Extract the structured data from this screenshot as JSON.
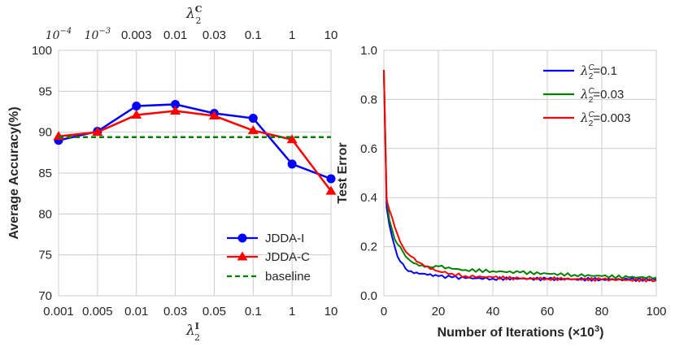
{
  "chart_data": [
    {
      "type": "line",
      "xlabel_main": "λ",
      "xlabel_sub": "2",
      "xlabel_sup": "I",
      "top_xlabel_main": "λ",
      "top_xlabel_sub": "2",
      "top_xlabel_sup": "C",
      "ylabel": "Average Accuracy(%)",
      "categories": [
        "0.001",
        "0.005",
        "0.01",
        "0.03",
        "0.05",
        "0.1",
        "1",
        "10"
      ],
      "top_categories": [
        {
          "base": "10",
          "exp": "−4"
        },
        {
          "base": "10",
          "exp": "−3"
        },
        {
          "base": "0.003",
          "exp": ""
        },
        {
          "base": "0.01",
          "exp": ""
        },
        {
          "base": "0.03",
          "exp": ""
        },
        {
          "base": "0.1",
          "exp": ""
        },
        {
          "base": "1",
          "exp": ""
        },
        {
          "base": "10",
          "exp": ""
        }
      ],
      "ylim": [
        70,
        100
      ],
      "yticks": [
        "70",
        "75",
        "80",
        "85",
        "90",
        "95",
        "100"
      ],
      "series": [
        {
          "name": "JDDA-I",
          "color": "#0000ff",
          "marker": "circle",
          "values": [
            89.0,
            90.1,
            93.2,
            93.4,
            92.3,
            91.7,
            86.1,
            84.3
          ]
        },
        {
          "name": "JDDA-C",
          "color": "#ff0000",
          "marker": "triangle",
          "values": [
            89.5,
            90.0,
            92.1,
            92.6,
            92.0,
            90.2,
            89.1,
            82.8
          ]
        },
        {
          "name": "baseline",
          "color": "#008000",
          "dashed": true,
          "values": [
            89.4,
            89.4,
            89.4,
            89.4,
            89.4,
            89.4,
            89.4,
            89.4
          ]
        }
      ],
      "legend_position": "bottom-right"
    },
    {
      "type": "line",
      "xlabel": "Number of Iterations (×10",
      "xlabel_exp": "3",
      "xlabel_close": ")",
      "ylabel": "Test Error",
      "xlim": [
        0,
        100
      ],
      "ylim": [
        0,
        1.0
      ],
      "xticks": [
        "0",
        "20",
        "40",
        "60",
        "80",
        "100"
      ],
      "yticks": [
        "0.0",
        "0.2",
        "0.4",
        "0.6",
        "0.8",
        "1.0"
      ],
      "series": [
        {
          "name_sym": "λ",
          "name_sub": "2",
          "name_sup": "C",
          "name_val": "=0.1",
          "color": "#0000ff",
          "x": [
            0,
            1,
            2,
            3,
            4,
            5,
            6,
            7,
            8,
            9,
            10,
            12,
            14,
            16,
            18,
            20,
            25,
            30,
            40,
            50,
            60,
            70,
            80,
            90,
            100
          ],
          "y": [
            0.92,
            0.36,
            0.29,
            0.24,
            0.2,
            0.16,
            0.14,
            0.13,
            0.11,
            0.1,
            0.1,
            0.095,
            0.09,
            0.085,
            0.08,
            0.08,
            0.075,
            0.072,
            0.07,
            0.07,
            0.068,
            0.068,
            0.067,
            0.066,
            0.066
          ]
        },
        {
          "name_sym": "λ",
          "name_sub": "2",
          "name_sup": "C",
          "name_val": "=0.03",
          "color": "#008000",
          "x": [
            0,
            1,
            2,
            3,
            4,
            5,
            6,
            7,
            8,
            9,
            10,
            12,
            14,
            16,
            18,
            20,
            25,
            30,
            40,
            50,
            60,
            70,
            80,
            90,
            100
          ],
          "y": [
            0.92,
            0.4,
            0.31,
            0.27,
            0.23,
            0.21,
            0.2,
            0.18,
            0.16,
            0.15,
            0.14,
            0.13,
            0.125,
            0.12,
            0.115,
            0.12,
            0.11,
            0.105,
            0.1,
            0.095,
            0.09,
            0.085,
            0.08,
            0.075,
            0.075
          ]
        },
        {
          "name_sym": "λ",
          "name_sub": "2",
          "name_sup": "C",
          "name_val": "=0.003",
          "color": "#ff0000",
          "x": [
            0,
            1,
            2,
            3,
            4,
            5,
            6,
            7,
            8,
            9,
            10,
            12,
            14,
            16,
            18,
            20,
            25,
            30,
            40,
            50,
            60,
            70,
            80,
            90,
            100
          ],
          "y": [
            0.92,
            0.39,
            0.35,
            0.32,
            0.28,
            0.25,
            0.22,
            0.2,
            0.18,
            0.17,
            0.16,
            0.14,
            0.13,
            0.12,
            0.11,
            0.1,
            0.09,
            0.08,
            0.075,
            0.07,
            0.07,
            0.068,
            0.066,
            0.065,
            0.063
          ]
        }
      ],
      "legend_position": "top-right"
    }
  ]
}
